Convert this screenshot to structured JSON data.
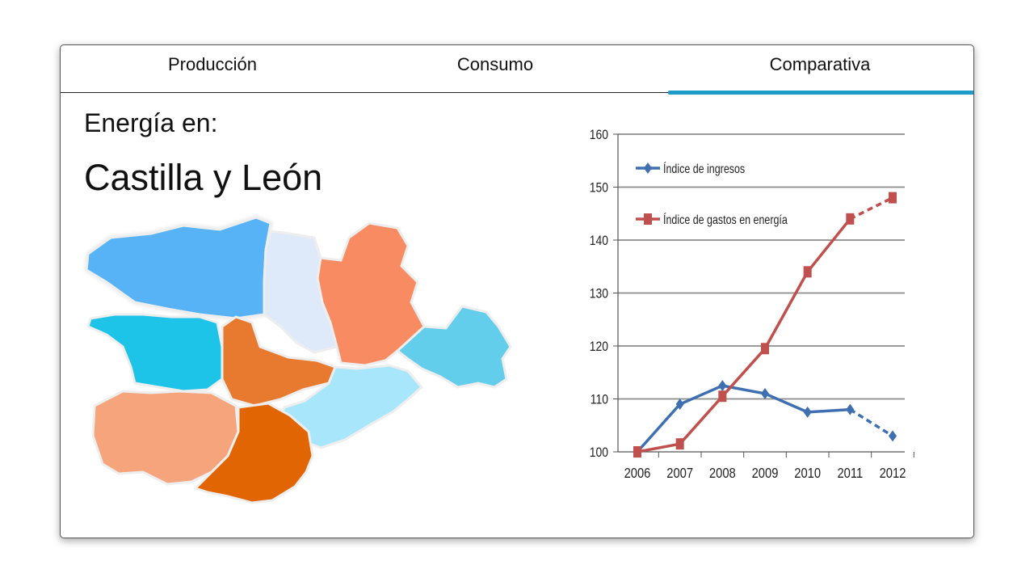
{
  "tabs": [
    {
      "label": "Producción",
      "active": false
    },
    {
      "label": "Consumo",
      "active": false
    },
    {
      "label": "Comparativa",
      "active": true
    }
  ],
  "colors": {
    "accent": "#1e9cc8",
    "series_ingresos": "#3e6fb0",
    "series_gastos": "#c0504d"
  },
  "heading": {
    "prefix": "Energía en:",
    "region": "Castilla y León"
  },
  "chart_data": {
    "type": "line",
    "categories": [
      "2006",
      "2007",
      "2008",
      "2009",
      "2010",
      "2011",
      "2012"
    ],
    "ylim": [
      100,
      160
    ],
    "yticks": [
      "100",
      "110",
      "120",
      "130",
      "140",
      "150",
      "160"
    ],
    "grid": true,
    "legend_position": "top-left",
    "series": [
      {
        "name": "Índice de ingresos",
        "values": [
          100,
          109,
          112.5,
          111,
          107.5,
          108,
          103
        ],
        "marker": "diamond",
        "projected_from_index": 5
      },
      {
        "name": "Índice de gastos en energía",
        "values": [
          100,
          101.5,
          110.5,
          119.5,
          134,
          144,
          148
        ],
        "marker": "square",
        "projected_from_index": 5
      }
    ]
  }
}
